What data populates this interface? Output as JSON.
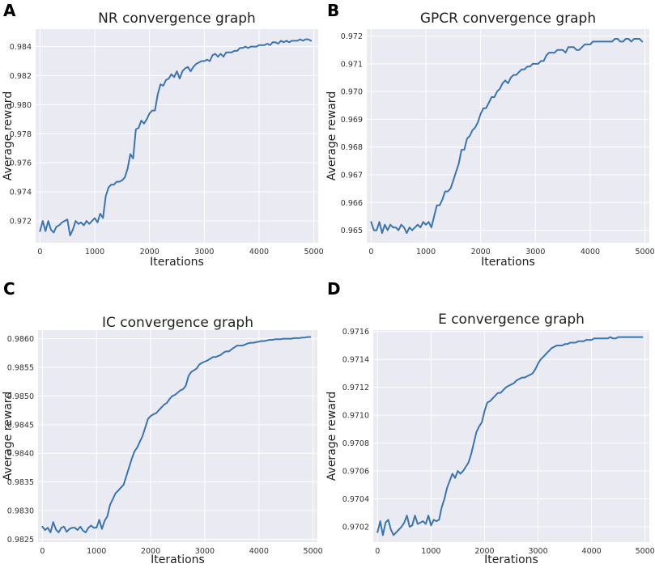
{
  "colors": {
    "line": "#3a75b0",
    "background": "#eaeaf2",
    "grid": "#ffffff"
  },
  "chart_data": [
    {
      "type": "line",
      "panel": "A",
      "title": "NR convergence graph",
      "xlabel": "Iterations",
      "ylabel": "Average reward",
      "xlim": [
        -80,
        5080
      ],
      "ylim": [
        0.9705,
        0.9852
      ],
      "grid": true,
      "xticks": [
        0,
        1000,
        2000,
        3000,
        4000,
        5000
      ],
      "xtick_labels": [
        "0",
        "1000",
        "2000",
        "3000",
        "4000",
        "5000"
      ],
      "yticks": [
        0.972,
        0.974,
        0.976,
        0.978,
        0.98,
        0.982,
        0.984
      ],
      "ytick_labels": [
        "0.972",
        "0.974",
        "0.976",
        "0.978",
        "0.980",
        "0.982",
        "0.984"
      ],
      "series": [
        {
          "name": "NR",
          "x": [
            0,
            50,
            100,
            150,
            200,
            250,
            300,
            350,
            400,
            450,
            500,
            550,
            600,
            650,
            700,
            750,
            800,
            850,
            900,
            950,
            1000,
            1050,
            1100,
            1150,
            1200,
            1250,
            1300,
            1350,
            1400,
            1450,
            1500,
            1550,
            1600,
            1650,
            1700,
            1750,
            1800,
            1850,
            1900,
            1950,
            2000,
            2050,
            2100,
            2150,
            2200,
            2250,
            2300,
            2350,
            2400,
            2450,
            2500,
            2550,
            2600,
            2650,
            2700,
            2750,
            2800,
            2850,
            2900,
            2950,
            3000,
            3050,
            3100,
            3150,
            3200,
            3250,
            3300,
            3350,
            3400,
            3450,
            3500,
            3550,
            3600,
            3650,
            3700,
            3750,
            3800,
            3850,
            3900,
            3950,
            4000,
            4050,
            4100,
            4150,
            4200,
            4250,
            4300,
            4350,
            4400,
            4450,
            4500,
            4550,
            4600,
            4650,
            4700,
            4750,
            4800,
            4850,
            4900,
            4950
          ],
          "y": [
            0.9713,
            0.972,
            0.9713,
            0.972,
            0.9714,
            0.9712,
            0.9716,
            0.9717,
            0.9719,
            0.972,
            0.9721,
            0.971,
            0.9714,
            0.972,
            0.9718,
            0.9719,
            0.9717,
            0.972,
            0.9718,
            0.972,
            0.9722,
            0.9719,
            0.9725,
            0.9722,
            0.9737,
            0.9743,
            0.9745,
            0.9745,
            0.9747,
            0.9747,
            0.9748,
            0.975,
            0.9756,
            0.9766,
            0.9763,
            0.9783,
            0.9784,
            0.9789,
            0.9787,
            0.979,
            0.9794,
            0.9796,
            0.9796,
            0.9807,
            0.9814,
            0.9813,
            0.9817,
            0.9818,
            0.9821,
            0.9819,
            0.9823,
            0.9818,
            0.9823,
            0.9825,
            0.9826,
            0.9823,
            0.9826,
            0.9828,
            0.9829,
            0.983,
            0.983,
            0.9831,
            0.983,
            0.9834,
            0.9835,
            0.9833,
            0.9835,
            0.9833,
            0.9836,
            0.9836,
            0.9836,
            0.9837,
            0.9837,
            0.9839,
            0.9839,
            0.984,
            0.9839,
            0.984,
            0.984,
            0.984,
            0.9841,
            0.9841,
            0.9841,
            0.9842,
            0.9841,
            0.9843,
            0.9843,
            0.9842,
            0.9844,
            0.9843,
            0.9844,
            0.9843,
            0.9844,
            0.9844,
            0.9844,
            0.9845,
            0.9844,
            0.9845,
            0.9845,
            0.9844
          ]
        }
      ]
    },
    {
      "type": "line",
      "panel": "B",
      "title": "GPCR convergence graph",
      "xlabel": "Iterations",
      "ylabel": "Average reward",
      "xlim": [
        -80,
        5080
      ],
      "ylim": [
        0.96455,
        0.97225
      ],
      "grid": true,
      "xticks": [
        0,
        1000,
        2000,
        3000,
        4000,
        5000
      ],
      "xtick_labels": [
        "0",
        "1000",
        "2000",
        "3000",
        "4000",
        "5000"
      ],
      "yticks": [
        0.965,
        0.966,
        0.967,
        0.968,
        0.969,
        0.97,
        0.971,
        0.972
      ],
      "ytick_labels": [
        "0.965",
        "0.966",
        "0.967",
        "0.968",
        "0.969",
        "0.970",
        "0.971",
        "0.972"
      ],
      "series": [
        {
          "name": "GPCR",
          "x": [
            0,
            50,
            100,
            150,
            200,
            250,
            300,
            350,
            400,
            450,
            500,
            550,
            600,
            650,
            700,
            750,
            800,
            850,
            900,
            950,
            1000,
            1050,
            1100,
            1150,
            1200,
            1250,
            1300,
            1350,
            1400,
            1450,
            1500,
            1550,
            1600,
            1650,
            1700,
            1750,
            1800,
            1850,
            1900,
            1950,
            2000,
            2050,
            2100,
            2150,
            2200,
            2250,
            2300,
            2350,
            2400,
            2450,
            2500,
            2550,
            2600,
            2650,
            2700,
            2750,
            2800,
            2850,
            2900,
            2950,
            3000,
            3050,
            3100,
            3150,
            3200,
            3250,
            3300,
            3350,
            3400,
            3450,
            3500,
            3550,
            3600,
            3650,
            3700,
            3750,
            3800,
            3850,
            3900,
            3950,
            4000,
            4050,
            4100,
            4150,
            4200,
            4250,
            4300,
            4350,
            4400,
            4450,
            4500,
            4550,
            4600,
            4650,
            4700,
            4750,
            4800,
            4850,
            4900,
            4950
          ],
          "y": [
            0.9653,
            0.965,
            0.965,
            0.9653,
            0.9649,
            0.9652,
            0.965,
            0.9652,
            0.9651,
            0.9651,
            0.965,
            0.9652,
            0.9651,
            0.9649,
            0.9651,
            0.965,
            0.9651,
            0.9652,
            0.9651,
            0.9653,
            0.9652,
            0.9653,
            0.9651,
            0.9655,
            0.9659,
            0.9659,
            0.9661,
            0.9664,
            0.9664,
            0.9665,
            0.9668,
            0.9671,
            0.9674,
            0.9679,
            0.9679,
            0.9683,
            0.9684,
            0.9686,
            0.9687,
            0.9689,
            0.9692,
            0.9694,
            0.9694,
            0.9696,
            0.9698,
            0.9698,
            0.97,
            0.9701,
            0.9703,
            0.9704,
            0.9703,
            0.9705,
            0.9706,
            0.9706,
            0.9707,
            0.9708,
            0.9708,
            0.9709,
            0.9709,
            0.971,
            0.971,
            0.971,
            0.9711,
            0.9711,
            0.9713,
            0.9714,
            0.9714,
            0.9714,
            0.9715,
            0.9715,
            0.9715,
            0.9714,
            0.9716,
            0.9716,
            0.9716,
            0.9715,
            0.9715,
            0.9716,
            0.9717,
            0.9717,
            0.9717,
            0.9718,
            0.9718,
            0.9718,
            0.9718,
            0.9718,
            0.9718,
            0.9718,
            0.9718,
            0.9719,
            0.9719,
            0.9718,
            0.9718,
            0.9719,
            0.9719,
            0.9718,
            0.9719,
            0.9719,
            0.9719,
            0.9718
          ]
        }
      ]
    },
    {
      "type": "line",
      "panel": "C",
      "title": "IC convergence graph",
      "xlabel": "Iterations",
      "ylabel": "Average reward",
      "xlim": [
        -80,
        5080
      ],
      "ylim": [
        0.98245,
        0.98615
      ],
      "grid": true,
      "xticks": [
        0,
        1000,
        2000,
        3000,
        4000,
        5000
      ],
      "xtick_labels": [
        "0",
        "1000",
        "2000",
        "3000",
        "4000",
        "5000"
      ],
      "yticks": [
        0.9825,
        0.983,
        0.9835,
        0.984,
        0.9845,
        0.985,
        0.9855,
        0.986
      ],
      "ytick_labels": [
        "0.9825",
        "0.9830",
        "0.9835",
        "0.9840",
        "0.9845",
        "0.9850",
        "0.9855",
        "0.9860"
      ],
      "series": [
        {
          "name": "IC",
          "x": [
            0,
            50,
            100,
            150,
            200,
            250,
            300,
            350,
            400,
            450,
            500,
            550,
            600,
            650,
            700,
            750,
            800,
            850,
            900,
            950,
            1000,
            1050,
            1100,
            1150,
            1200,
            1250,
            1300,
            1350,
            1400,
            1450,
            1500,
            1550,
            1600,
            1650,
            1700,
            1750,
            1800,
            1850,
            1900,
            1950,
            2000,
            2050,
            2100,
            2150,
            2200,
            2250,
            2300,
            2350,
            2400,
            2450,
            2500,
            2550,
            2600,
            2650,
            2700,
            2750,
            2800,
            2850,
            2900,
            2950,
            3000,
            3050,
            3100,
            3150,
            3200,
            3250,
            3300,
            3350,
            3400,
            3450,
            3500,
            3550,
            3600,
            3650,
            3700,
            3750,
            3800,
            3850,
            3900,
            3950,
            4000,
            4050,
            4100,
            4150,
            4200,
            4250,
            4300,
            4350,
            4400,
            4450,
            4500,
            4550,
            4600,
            4650,
            4700,
            4750,
            4800,
            4850,
            4900,
            4950
          ],
          "y": [
            0.98272,
            0.98266,
            0.9827,
            0.98262,
            0.9828,
            0.98267,
            0.98262,
            0.9827,
            0.98272,
            0.98263,
            0.98268,
            0.9827,
            0.9827,
            0.98266,
            0.98272,
            0.98265,
            0.98262,
            0.9827,
            0.98274,
            0.9827,
            0.9827,
            0.98284,
            0.98268,
            0.98282,
            0.9829,
            0.9831,
            0.9832,
            0.9833,
            0.98335,
            0.9834,
            0.98345,
            0.9836,
            0.98375,
            0.9839,
            0.98403,
            0.9841,
            0.9842,
            0.9843,
            0.98445,
            0.9846,
            0.98465,
            0.98468,
            0.9847,
            0.98475,
            0.9848,
            0.98485,
            0.98488,
            0.98495,
            0.985,
            0.98502,
            0.98506,
            0.9851,
            0.98512,
            0.98518,
            0.98535,
            0.98542,
            0.98545,
            0.98548,
            0.98555,
            0.98558,
            0.9856,
            0.98562,
            0.98565,
            0.98568,
            0.98568,
            0.9857,
            0.98572,
            0.98576,
            0.98578,
            0.98578,
            0.98582,
            0.98585,
            0.98588,
            0.98588,
            0.98588,
            0.9859,
            0.98592,
            0.98593,
            0.98593,
            0.98594,
            0.98595,
            0.98596,
            0.98596,
            0.98597,
            0.98598,
            0.98598,
            0.98599,
            0.98599,
            0.98599,
            0.986,
            0.986,
            0.986,
            0.986,
            0.98601,
            0.98601,
            0.98601,
            0.98602,
            0.98602,
            0.98603,
            0.98603
          ]
        }
      ]
    },
    {
      "type": "line",
      "panel": "D",
      "title": "E convergence graph",
      "xlabel": "Iterations",
      "ylabel": "Average reward",
      "xlim": [
        -80,
        5080
      ],
      "ylim": [
        0.97009,
        0.97161
      ],
      "grid": true,
      "xticks": [
        0,
        1000,
        2000,
        3000,
        4000,
        5000
      ],
      "xtick_labels": [
        "0",
        "1000",
        "2000",
        "3000",
        "4000",
        "5000"
      ],
      "yticks": [
        0.9702,
        0.9704,
        0.9706,
        0.9708,
        0.971,
        0.9712,
        0.9714,
        0.9716
      ],
      "ytick_labels": [
        "0.9702",
        "0.9704",
        "0.9706",
        "0.9708",
        "0.9710",
        "0.9712",
        "0.9714",
        "0.9716"
      ],
      "series": [
        {
          "name": "E",
          "x": [
            0,
            50,
            100,
            150,
            200,
            250,
            300,
            350,
            400,
            450,
            500,
            550,
            600,
            650,
            700,
            750,
            800,
            850,
            900,
            950,
            1000,
            1050,
            1100,
            1150,
            1200,
            1250,
            1300,
            1350,
            1400,
            1450,
            1500,
            1550,
            1600,
            1650,
            1700,
            1750,
            1800,
            1850,
            1900,
            1950,
            2000,
            2050,
            2100,
            2150,
            2200,
            2250,
            2300,
            2350,
            2400,
            2450,
            2500,
            2550,
            2600,
            2650,
            2700,
            2750,
            2800,
            2850,
            2900,
            2950,
            3000,
            3050,
            3100,
            3150,
            3200,
            3250,
            3300,
            3350,
            3400,
            3450,
            3500,
            3550,
            3600,
            3650,
            3700,
            3750,
            3800,
            3850,
            3900,
            3950,
            4000,
            4050,
            4100,
            4150,
            4200,
            4250,
            4300,
            4350,
            4400,
            4450,
            4500,
            4550,
            4600,
            4650,
            4700,
            4750,
            4800,
            4850,
            4900,
            4950
          ],
          "y": [
            0.97016,
            0.97024,
            0.97014,
            0.97023,
            0.97025,
            0.97018,
            0.97014,
            0.97016,
            0.97018,
            0.9702,
            0.97023,
            0.97028,
            0.9702,
            0.97021,
            0.97028,
            0.97022,
            0.97023,
            0.97024,
            0.97022,
            0.97028,
            0.97021,
            0.97025,
            0.97024,
            0.97025,
            0.97034,
            0.9704,
            0.97048,
            0.97053,
            0.97058,
            0.97055,
            0.9706,
            0.97058,
            0.9706,
            0.97063,
            0.97066,
            0.97072,
            0.9708,
            0.97088,
            0.97092,
            0.97095,
            0.97103,
            0.97109,
            0.9711,
            0.97112,
            0.97114,
            0.97116,
            0.97116,
            0.97118,
            0.9712,
            0.97121,
            0.97122,
            0.97123,
            0.97125,
            0.97126,
            0.97127,
            0.97127,
            0.97128,
            0.97129,
            0.9713,
            0.97133,
            0.97137,
            0.9714,
            0.97142,
            0.97144,
            0.97146,
            0.97148,
            0.97149,
            0.9715,
            0.9715,
            0.9715,
            0.97151,
            0.97151,
            0.97152,
            0.97152,
            0.97152,
            0.97153,
            0.97153,
            0.97153,
            0.97154,
            0.97154,
            0.97154,
            0.97155,
            0.97155,
            0.97155,
            0.97155,
            0.97155,
            0.97155,
            0.97156,
            0.97155,
            0.97155,
            0.97156,
            0.97156,
            0.97156,
            0.97156,
            0.97156,
            0.97156,
            0.97156,
            0.97156,
            0.97156,
            0.97156
          ]
        }
      ]
    }
  ]
}
